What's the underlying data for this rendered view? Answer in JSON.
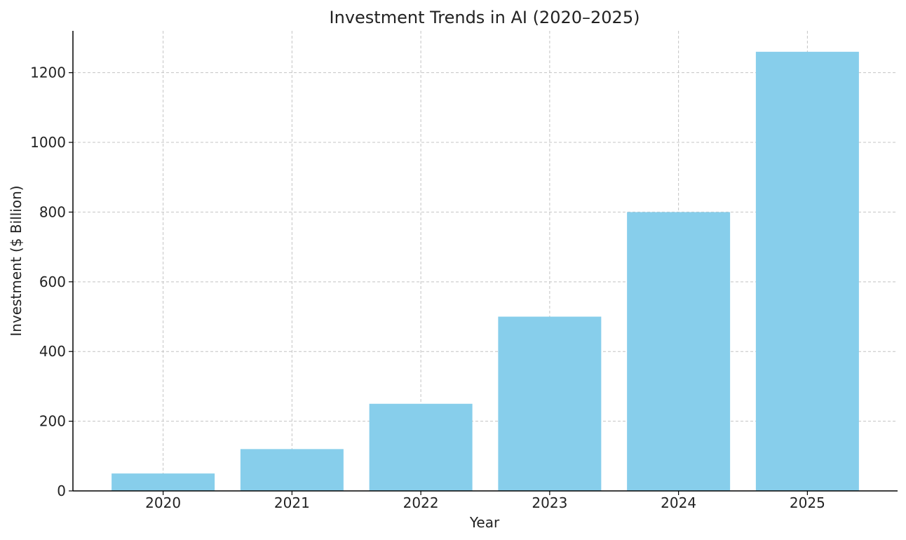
{
  "chart_data": {
    "type": "bar",
    "title": "Investment Trends in AI (2020–2025)",
    "xlabel": "Year",
    "ylabel": "Investment ($ Billion)",
    "categories": [
      "2020",
      "2021",
      "2022",
      "2023",
      "2024",
      "2025"
    ],
    "values": [
      50,
      120,
      250,
      500,
      800,
      1260
    ],
    "ylim": [
      0,
      1320
    ],
    "yticks": [
      0,
      200,
      400,
      600,
      800,
      1000,
      1200
    ],
    "grid": true,
    "bar_color": "#87CEEB"
  }
}
